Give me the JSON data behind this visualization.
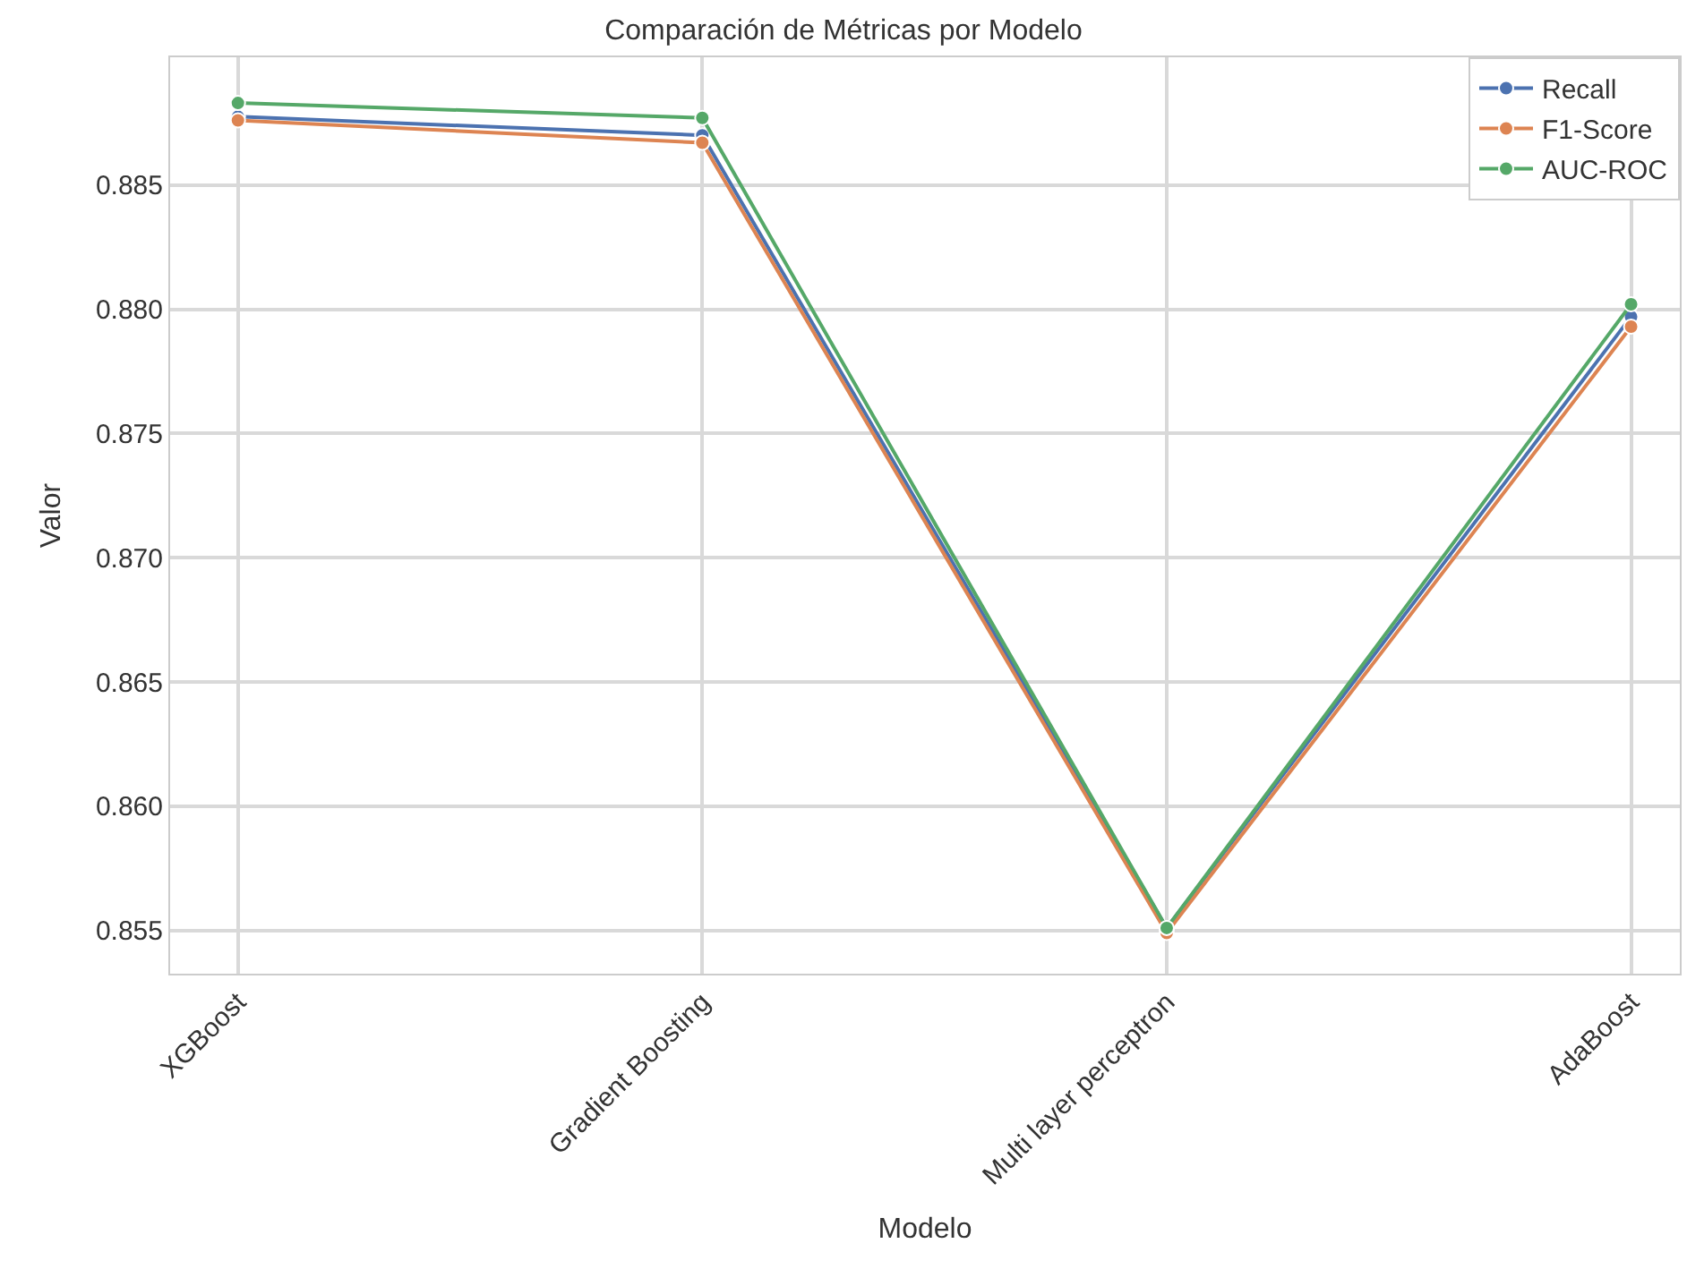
{
  "chart_data": {
    "type": "line",
    "title": "Comparación de Métricas por Modelo",
    "xlabel": "Modelo",
    "ylabel": "Valor",
    "categories": [
      "XGBoost",
      "Gradient Boosting",
      "Multi layer perceptron",
      "AdaBoost"
    ],
    "series": [
      {
        "name": "Recall",
        "color": "#4c72b0",
        "values": [
          0.88775,
          0.887,
          0.8551,
          0.8797
        ]
      },
      {
        "name": "F1-Score",
        "color": "#dd8452",
        "values": [
          0.8876,
          0.8867,
          0.8549,
          0.8793
        ]
      },
      {
        "name": "AUC-ROC",
        "color": "#55a868",
        "values": [
          0.8883,
          0.8877,
          0.8551,
          0.8802
        ]
      }
    ],
    "ylim": [
      0.85326,
      0.89014
    ],
    "yticks": [
      0.855,
      {
        "value": 0.86,
        "label": "0.860"
      },
      0.865,
      {
        "value": 0.87,
        "label": "0.870"
      },
      0.875,
      {
        "value": 0.88,
        "label": "0.880"
      },
      0.885
    ],
    "grid": true,
    "legend": "top right",
    "marker": "circle",
    "line_style": "solid"
  }
}
